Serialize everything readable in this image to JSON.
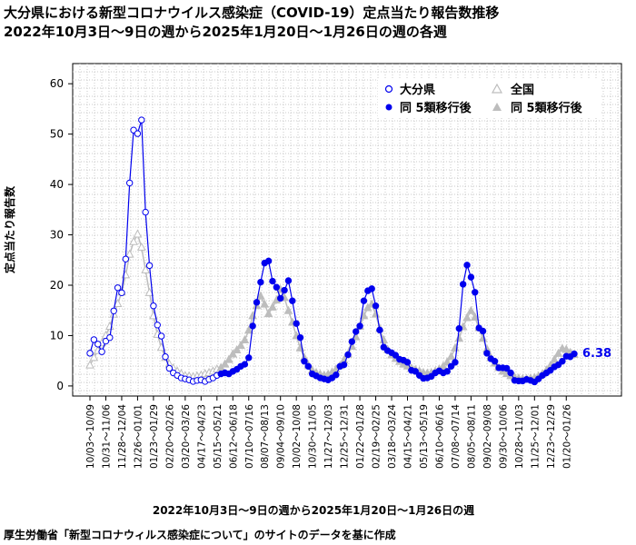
{
  "title_line1": "大分県における新型コロナウイルス感染症（COVID-19）定点当たり報告数推移",
  "title_line2": "2022年10月3日～9日の週から2025年1月20日～1月26日の週の各週",
  "x_axis_label": "2022年10月3日～9日の週から2025年1月20日～1月26日の週",
  "source_note": "厚生労働省「新型コロナウィルス感染症について」のサイトのデータを基に作成",
  "y_axis_label": "定点当たり報告数",
  "last_value_label": "6.38",
  "legend": {
    "oita": "大分県",
    "national": "全国",
    "oita_after": "同 5類移行後",
    "national_after": "同 5類移行後"
  },
  "colors": {
    "oita": "#0000ee",
    "national": "#bdbdbd"
  },
  "chart_data": {
    "type": "line",
    "ylim": [
      -2,
      64
    ],
    "yticks": [
      0,
      10,
      20,
      30,
      40,
      50,
      60
    ],
    "grid": true,
    "legend_position": "top-right",
    "x_tick_labels": [
      "10/03～10/09",
      "10/31～11/06",
      "11/28～12/04",
      "12/26～01/01",
      "01/23～01/29",
      "02/20～02/26",
      "03/20～03/26",
      "04/17～04/23",
      "05/15～05/21",
      "06/12～06/18",
      "07/10～07/16",
      "08/07～08/13",
      "09/04～09/10",
      "10/02～10/08",
      "10/30～11/05",
      "11/27～12/03",
      "12/25～12/31",
      "01/22～01/28",
      "02/19～02/25",
      "03/18～03/24",
      "04/15～04/21",
      "05/13～05/19",
      "06/10～06/16",
      "07/08～07/14",
      "08/05～08/11",
      "09/02～09/08",
      "09/30～10/06",
      "10/28～11/03",
      "11/25～12/01",
      "12/23～12/29",
      "01/20～01/26"
    ],
    "split_index": 33,
    "series": [
      {
        "name": "大分県",
        "values": [
          6.5,
          9.2,
          8.3,
          6.8,
          8.9,
          9.6,
          14.9,
          19.5,
          18.5,
          25.2,
          40.3,
          50.8,
          50.1,
          52.8,
          34.5,
          23.9,
          15.9,
          12.1,
          9.9,
          5.8,
          3.5,
          2.6,
          2.1,
          1.6,
          1.4,
          1.2,
          0.9,
          1.1,
          1.2,
          0.9,
          1.3,
          1.6,
          2.1,
          2.4,
          2.6,
          2.4,
          2.9,
          3.3,
          3.9,
          4.3,
          5.6,
          11.9,
          16.6,
          20.6,
          24.4,
          24.8,
          20.8,
          19.6,
          17.4,
          19.0,
          20.9,
          16.9,
          12.4,
          9.6,
          4.9,
          3.9,
          2.4,
          2.0,
          1.6,
          1.4,
          1.2,
          1.6,
          2.2,
          3.9,
          4.2,
          6.2,
          8.8,
          10.8,
          11.9,
          16.9,
          18.9,
          19.3,
          15.9,
          11.1,
          7.7,
          7.0,
          6.6,
          6.1,
          5.3,
          5.1,
          4.7,
          3.1,
          2.9,
          2.1,
          1.5,
          1.6,
          1.9,
          2.6,
          3.0,
          2.6,
          2.9,
          3.9,
          4.7,
          11.4,
          20.2,
          24.0,
          21.6,
          18.6,
          11.5,
          10.9,
          6.5,
          5.4,
          4.9,
          3.6,
          3.6,
          3.5,
          2.6,
          1.1,
          1.0,
          1.0,
          1.3,
          1.1,
          0.8,
          1.4,
          2.1,
          2.6,
          3.1,
          3.8,
          4.2,
          4.9,
          5.9,
          5.8,
          6.38
        ]
      },
      {
        "name": "全国",
        "values": [
          4.1,
          5.6,
          7.0,
          8.5,
          10.0,
          11.8,
          14.2,
          16.3,
          18.6,
          22.0,
          26.1,
          28.6,
          30.1,
          27.5,
          23.0,
          18.5,
          13.9,
          10.2,
          7.6,
          5.6,
          4.3,
          3.5,
          2.9,
          2.4,
          2.0,
          1.9,
          1.8,
          1.9,
          2.1,
          2.4,
          2.6,
          2.9,
          3.3,
          3.6,
          4.3,
          5.2,
          6.3,
          7.1,
          8.0,
          9.1,
          11.0,
          13.9,
          15.9,
          17.8,
          16.2,
          14.3,
          15.6,
          17.0,
          19.1,
          17.5,
          14.9,
          12.6,
          9.9,
          7.5,
          5.6,
          4.1,
          3.1,
          2.6,
          2.3,
          2.1,
          2.3,
          2.7,
          3.3,
          4.0,
          5.1,
          6.3,
          7.8,
          9.7,
          11.8,
          13.9,
          15.5,
          16.2,
          14.2,
          11.4,
          9.1,
          7.2,
          6.1,
          5.4,
          4.8,
          4.3,
          3.9,
          3.5,
          3.2,
          2.9,
          2.6,
          2.5,
          2.6,
          2.9,
          3.3,
          3.9,
          4.7,
          5.8,
          7.5,
          9.4,
          11.7,
          13.5,
          14.9,
          13.6,
          11.5,
          9.4,
          7.3,
          5.6,
          4.5,
          3.6,
          2.9,
          2.4,
          2.0,
          1.7,
          1.5,
          1.4,
          1.4,
          1.5,
          1.6,
          1.9,
          2.4,
          3.1,
          4.0,
          5.2,
          6.4,
          7.4,
          7.2,
          6.6,
          6.2
        ]
      }
    ]
  }
}
